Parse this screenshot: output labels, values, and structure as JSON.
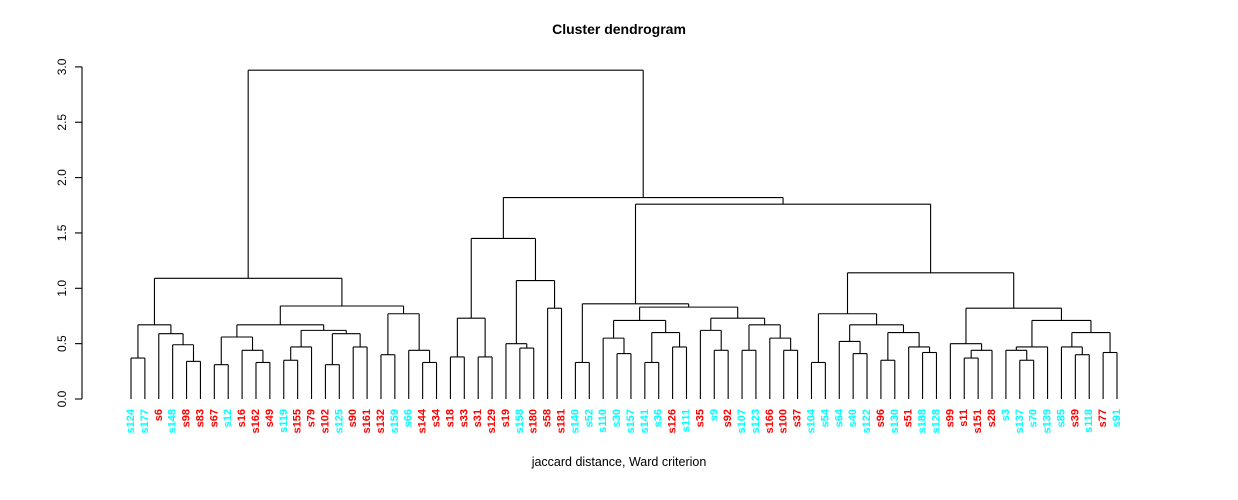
{
  "chart_data": {
    "type": "dendrogram",
    "title": "Cluster dendrogram",
    "xlabel": "jaccard distance, Ward criterion",
    "ylabel": "",
    "ylim": [
      0,
      3
    ],
    "yticks": [
      "0.0",
      "0.5",
      "1.0",
      "1.5",
      "2.0",
      "2.5",
      "3.0"
    ],
    "grid": false,
    "legend": "none",
    "palette": {
      "red": "#ff0000",
      "cyan": "#00ffff",
      "line": "#000000"
    },
    "leaves": [
      {
        "label": "s124",
        "color": "cyan"
      },
      {
        "label": "s177",
        "color": "cyan"
      },
      {
        "label": "s6",
        "color": "red"
      },
      {
        "label": "s148",
        "color": "cyan"
      },
      {
        "label": "s98",
        "color": "red"
      },
      {
        "label": "s83",
        "color": "red"
      },
      {
        "label": "s67",
        "color": "red"
      },
      {
        "label": "s12",
        "color": "cyan"
      },
      {
        "label": "s16",
        "color": "red"
      },
      {
        "label": "s162",
        "color": "red"
      },
      {
        "label": "s49",
        "color": "red"
      },
      {
        "label": "s119",
        "color": "cyan"
      },
      {
        "label": "s155",
        "color": "red"
      },
      {
        "label": "s79",
        "color": "red"
      },
      {
        "label": "s102",
        "color": "red"
      },
      {
        "label": "s125",
        "color": "cyan"
      },
      {
        "label": "s90",
        "color": "red"
      },
      {
        "label": "s161",
        "color": "red"
      },
      {
        "label": "s132",
        "color": "red"
      },
      {
        "label": "s159",
        "color": "cyan"
      },
      {
        "label": "s66",
        "color": "cyan"
      },
      {
        "label": "s144",
        "color": "red"
      },
      {
        "label": "s34",
        "color": "red"
      },
      {
        "label": "s18",
        "color": "red"
      },
      {
        "label": "s33",
        "color": "red"
      },
      {
        "label": "s31",
        "color": "red"
      },
      {
        "label": "s129",
        "color": "red"
      },
      {
        "label": "s19",
        "color": "red"
      },
      {
        "label": "s158",
        "color": "cyan"
      },
      {
        "label": "s180",
        "color": "red"
      },
      {
        "label": "s58",
        "color": "red"
      },
      {
        "label": "s181",
        "color": "red"
      },
      {
        "label": "s140",
        "color": "cyan"
      },
      {
        "label": "s52",
        "color": "cyan"
      },
      {
        "label": "s110",
        "color": "cyan"
      },
      {
        "label": "s30",
        "color": "cyan"
      },
      {
        "label": "s157",
        "color": "cyan"
      },
      {
        "label": "s141",
        "color": "cyan"
      },
      {
        "label": "s36",
        "color": "cyan"
      },
      {
        "label": "s126",
        "color": "red"
      },
      {
        "label": "s111",
        "color": "cyan"
      },
      {
        "label": "s35",
        "color": "red"
      },
      {
        "label": "s9",
        "color": "cyan"
      },
      {
        "label": "s92",
        "color": "red"
      },
      {
        "label": "s107",
        "color": "cyan"
      },
      {
        "label": "s123",
        "color": "cyan"
      },
      {
        "label": "s166",
        "color": "red"
      },
      {
        "label": "s100",
        "color": "red"
      },
      {
        "label": "s37",
        "color": "red"
      },
      {
        "label": "s104",
        "color": "cyan"
      },
      {
        "label": "s54",
        "color": "cyan"
      },
      {
        "label": "s64",
        "color": "cyan"
      },
      {
        "label": "s40",
        "color": "cyan"
      },
      {
        "label": "s122",
        "color": "cyan"
      },
      {
        "label": "s96",
        "color": "red"
      },
      {
        "label": "s130",
        "color": "cyan"
      },
      {
        "label": "s51",
        "color": "red"
      },
      {
        "label": "s188",
        "color": "cyan"
      },
      {
        "label": "s128",
        "color": "cyan"
      },
      {
        "label": "s99",
        "color": "red"
      },
      {
        "label": "s11",
        "color": "red"
      },
      {
        "label": "s151",
        "color": "red"
      },
      {
        "label": "s28",
        "color": "red"
      },
      {
        "label": "s3",
        "color": "cyan"
      },
      {
        "label": "s137",
        "color": "cyan"
      },
      {
        "label": "s70",
        "color": "cyan"
      },
      {
        "label": "s139",
        "color": "cyan"
      },
      {
        "label": "s85",
        "color": "cyan"
      },
      {
        "label": "s39",
        "color": "red"
      },
      {
        "label": "s118",
        "color": "cyan"
      },
      {
        "label": "s77",
        "color": "red"
      },
      {
        "label": "s91",
        "color": "cyan"
      }
    ],
    "tree": [
      2.97,
      [
        1.09,
        [
          0.67,
          [
            0.37,
            "s124",
            "s177"
          ],
          [
            0.59,
            "s6",
            [
              0.49,
              "s148",
              [
                0.34,
                "s98",
                "s83"
              ]
            ]
          ]
        ],
        [
          0.84,
          [
            0.67,
            [
              0.56,
              [
                0.31,
                "s67",
                "s12"
              ],
              [
                0.44,
                "s16",
                [
                  0.33,
                  "s162",
                  "s49"
                ]
              ]
            ],
            [
              0.62,
              [
                0.47,
                [
                  0.35,
                  "s119",
                  "s155"
                ],
                "s79"
              ],
              [
                0.59,
                [
                  0.31,
                  "s102",
                  "s125"
                ],
                [
                  0.47,
                  "s90",
                  "s161"
                ]
              ]
            ]
          ],
          [
            0.77,
            [
              0.4,
              "s132",
              "s159"
            ],
            [
              0.44,
              "s66",
              [
                0.33,
                "s144",
                "s34"
              ]
            ]
          ]
        ]
      ],
      [
        1.82,
        [
          1.45,
          [
            0.73,
            [
              0.38,
              "s18",
              "s33"
            ],
            [
              0.38,
              "s31",
              "s129"
            ]
          ],
          [
            1.07,
            [
              0.5,
              "s19",
              [
                0.46,
                "s158",
                "s180"
              ]
            ],
            [
              0.82,
              "s58",
              "s181"
            ]
          ]
        ],
        [
          1.76,
          [
            0.86,
            [
              0.33,
              "s140",
              "s52"
            ],
            [
              0.83,
              [
                0.71,
                [
                  0.55,
                  "s110",
                  [
                    0.41,
                    "s30",
                    "s157"
                  ]
                ],
                [
                  0.6,
                  [
                    0.33,
                    "s141",
                    "s36"
                  ],
                  [
                    0.47,
                    "s126",
                    "s111"
                  ]
                ]
              ],
              [
                0.73,
                [
                  0.62,
                  "s35",
                  [
                    0.44,
                    "s9",
                    "s92"
                  ]
                ],
                [
                  0.67,
                  [
                    0.44,
                    "s107",
                    "s123"
                  ],
                  [
                    0.55,
                    "s166",
                    [
                      0.44,
                      "s100",
                      "s37"
                    ]
                  ]
                ]
              ]
            ]
          ],
          [
            1.14,
            [
              0.77,
              [
                0.33,
                "s104",
                "s54"
              ],
              [
                0.67,
                [
                  0.52,
                  "s64",
                  [
                    0.41,
                    "s40",
                    "s122"
                  ]
                ],
                [
                  0.6,
                  [
                    0.35,
                    "s96",
                    "s130"
                  ],
                  [
                    0.47,
                    "s51",
                    [
                      0.42,
                      "s188",
                      "s128"
                    ]
                  ]
                ]
              ]
            ],
            [
              0.82,
              [
                0.5,
                "s99",
                [
                  0.44,
                  [
                    0.37,
                    "s11",
                    "s151"
                  ],
                  "s28"
                ]
              ],
              [
                0.71,
                [
                  0.47,
                  [
                    0.44,
                    "s3",
                    [
                      0.35,
                      "s137",
                      "s70"
                    ]
                  ],
                  "s139"
                ],
                [
                  0.6,
                  [
                    0.47,
                    "s85",
                    [
                      0.4,
                      "s39",
                      "s118"
                    ]
                  ],
                  [
                    0.42,
                    "s77",
                    "s91"
                  ]
                ]
              ]
            ]
          ]
        ]
      ]
    ]
  }
}
